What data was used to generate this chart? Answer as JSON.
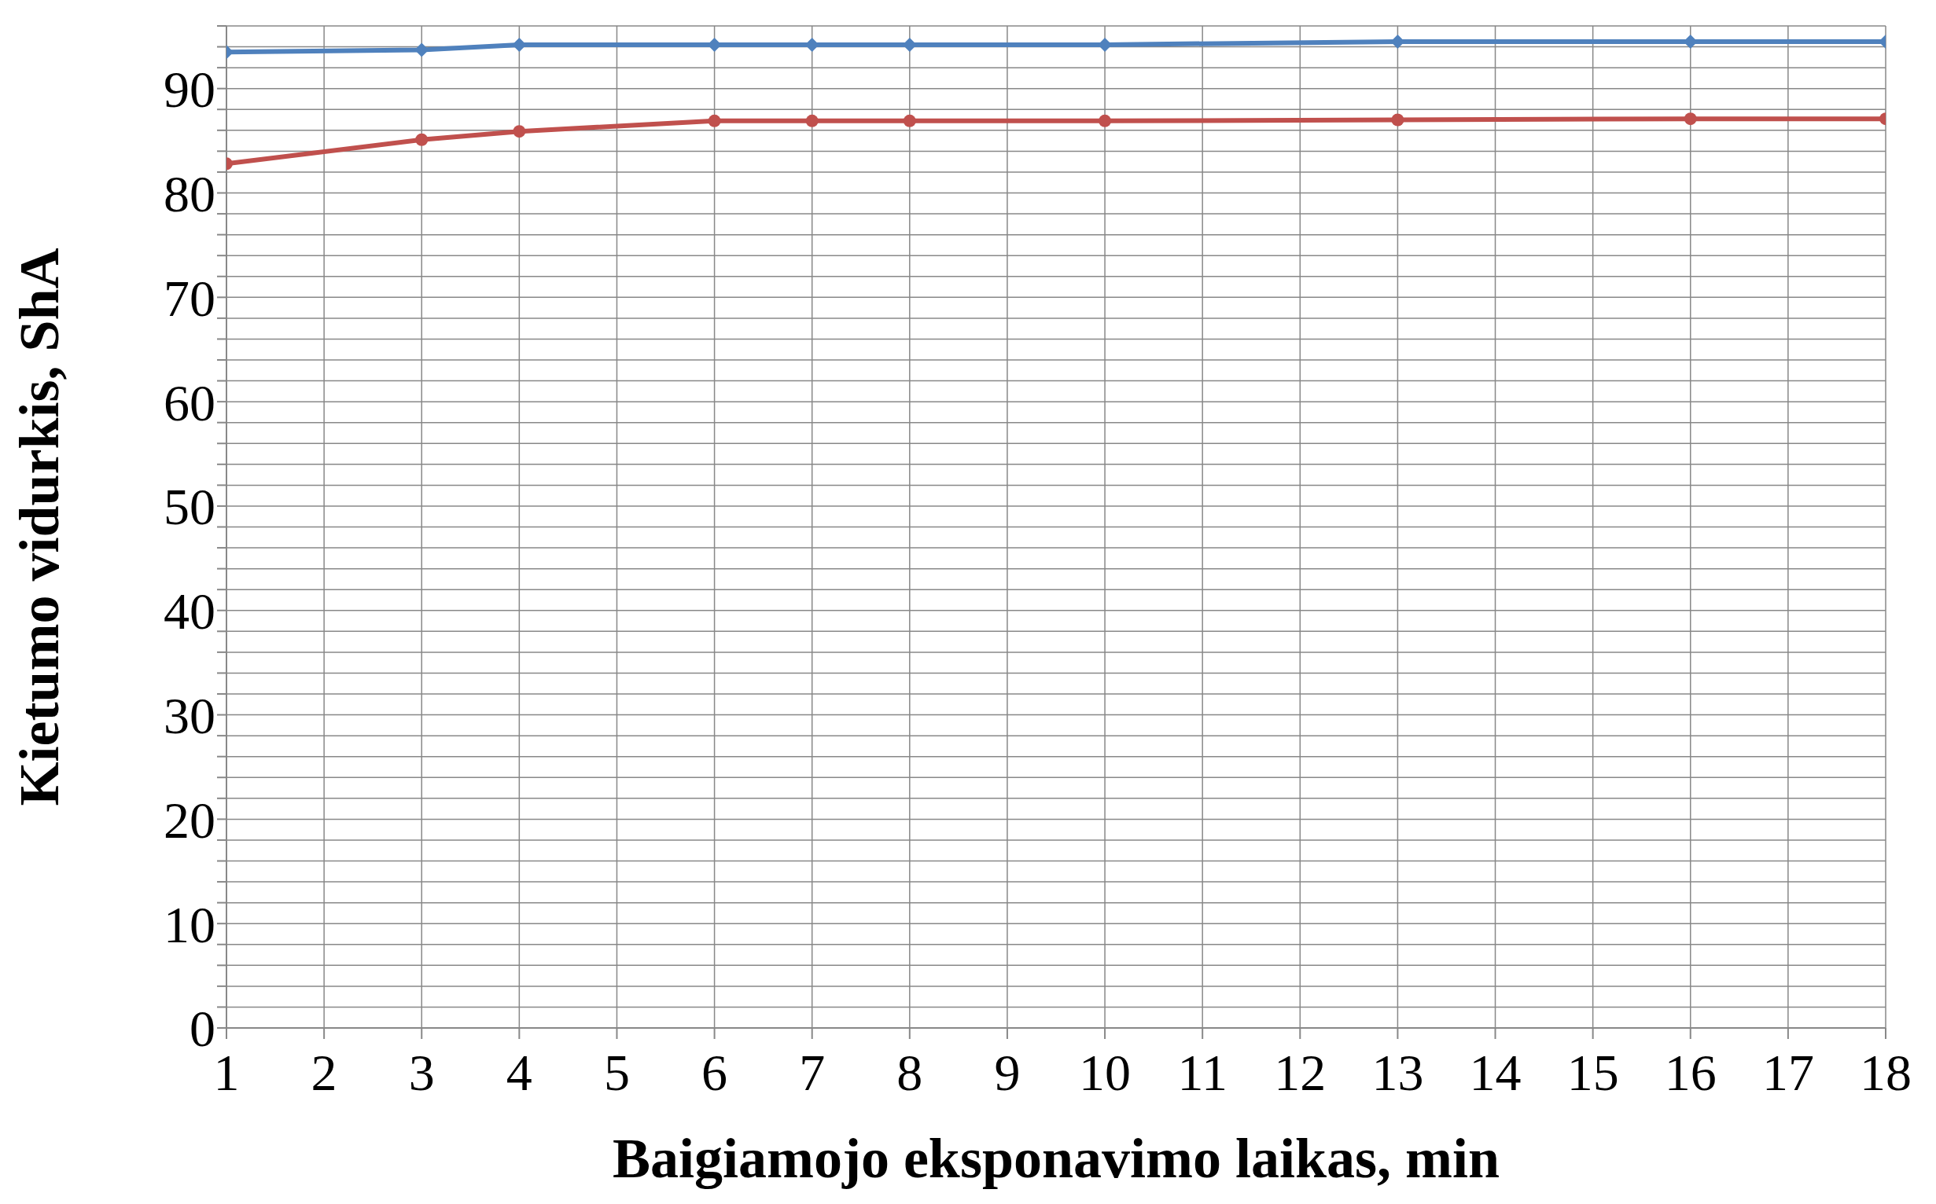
{
  "chart_data": {
    "type": "line",
    "xlabel": "Baigiamojo eksponavimo laikas, min",
    "ylabel": "Kietumo vidurkis, ShA",
    "x": [
      1,
      3,
      4,
      6,
      7,
      8,
      10,
      13,
      16,
      18
    ],
    "series": [
      {
        "color": "#4f81bd",
        "marker": "diamond",
        "values": [
          93.5,
          93.7,
          94.2,
          94.2,
          94.2,
          94.2,
          94.2,
          94.5,
          94.5,
          94.5
        ]
      },
      {
        "color": "#c0504d",
        "marker": "circle",
        "values": [
          82.8,
          85.1,
          85.9,
          86.9,
          86.9,
          86.9,
          86.9,
          87.0,
          87.1,
          87.1
        ]
      }
    ],
    "xlim": [
      1,
      18
    ],
    "xticks": [
      1,
      2,
      3,
      4,
      5,
      6,
      7,
      8,
      9,
      10,
      11,
      12,
      13,
      14,
      15,
      16,
      17,
      18
    ],
    "ylim": [
      0,
      96
    ],
    "yticks": [
      0,
      {
        "value": 2,
        "label": null
      },
      {
        "value": 4,
        "label": null
      },
      {
        "value": 6,
        "label": null
      },
      {
        "value": 8,
        "label": null
      },
      10,
      {
        "value": 12,
        "label": null
      },
      {
        "value": 14,
        "label": null
      },
      {
        "value": 16,
        "label": null
      },
      {
        "value": 18,
        "label": null
      },
      20,
      {
        "value": 22,
        "label": null
      },
      {
        "value": 24,
        "label": null
      },
      {
        "value": 26,
        "label": null
      },
      {
        "value": 28,
        "label": null
      },
      30,
      {
        "value": 32,
        "label": null
      },
      {
        "value": 34,
        "label": null
      },
      {
        "value": 36,
        "label": null
      },
      {
        "value": 38,
        "label": null
      },
      40,
      {
        "value": 42,
        "label": null
      },
      {
        "value": 44,
        "label": null
      },
      {
        "value": 46,
        "label": null
      },
      {
        "value": 48,
        "label": null
      },
      50,
      {
        "value": 52,
        "label": null
      },
      {
        "value": 54,
        "label": null
      },
      {
        "value": 56,
        "label": null
      },
      {
        "value": 58,
        "label": null
      },
      60,
      {
        "value": 62,
        "label": null
      },
      {
        "value": 64,
        "label": null
      },
      {
        "value": 66,
        "label": null
      },
      {
        "value": 68,
        "label": null
      },
      70,
      {
        "value": 72,
        "label": null
      },
      {
        "value": 74,
        "label": null
      },
      {
        "value": 76,
        "label": null
      },
      {
        "value": 78,
        "label": null
      },
      80,
      {
        "value": 82,
        "label": null
      },
      {
        "value": 84,
        "label": null
      },
      {
        "value": 86,
        "label": null
      },
      {
        "value": 88,
        "label": null
      },
      90,
      {
        "value": 92,
        "label": null
      },
      {
        "value": 94,
        "label": null
      },
      {
        "value": 96,
        "label": null
      }
    ],
    "grid": true,
    "legend": false,
    "line_style": "solid"
  }
}
